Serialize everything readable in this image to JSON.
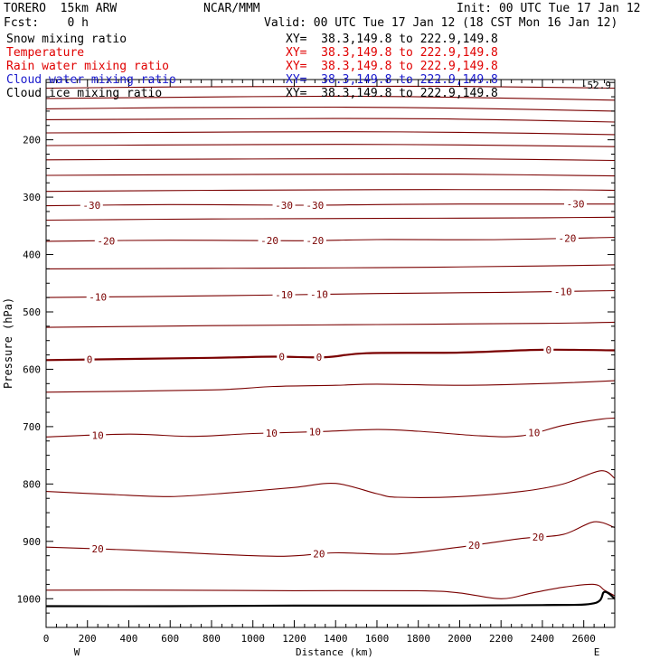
{
  "header": {
    "model": "TORERO  15km ARW",
    "org": "NCAR/MMM",
    "init": "Init: 00 UTC Tue 17 Jan 12",
    "fcst": "Fcst:    0 h",
    "valid": "Valid: 00 UTC Tue 17 Jan 12 (18 CST Mon 16 Jan 12)"
  },
  "fields": [
    {
      "label": "Snow mixing ratio",
      "xy": "XY=  38.3,149.8 to 222.9,149.8",
      "color": "#000000"
    },
    {
      "label": "Temperature",
      "xy": "XY=  38.3,149.8 to 222.9,149.8",
      "color": "#e00000"
    },
    {
      "label": "Rain water mixing ratio",
      "xy": "XY=  38.3,149.8 to 222.9,149.8",
      "color": "#e00000"
    },
    {
      "label": "Cloud water mixing ratio",
      "xy": "XY=  38.3,149.8 to 222.9,149.8",
      "color": "#1a1acc"
    },
    {
      "label": "Cloud ice mixing ratio",
      "xy": "XY=  38.3,149.8 to 222.9,149.8",
      "color": "#000000"
    }
  ],
  "top_right_label": "-52.9",
  "chart_data": {
    "type": "line",
    "xlabel": "Distance (km)",
    "ylabel": "Pressure (hPa)",
    "xlim": [
      0,
      2750
    ],
    "ylim": [
      1050,
      95
    ],
    "x_ticks": [
      0,
      200,
      400,
      600,
      800,
      1000,
      1200,
      1400,
      1600,
      1800,
      2000,
      2200,
      2400,
      2600
    ],
    "y_ticks": [
      200,
      300,
      400,
      500,
      600,
      700,
      800,
      900,
      1000
    ],
    "x_end_labels": [
      "W",
      "E"
    ],
    "contour_color": "#7a0000",
    "terrain_color": "#000000",
    "contours": [
      {
        "value": "",
        "points": [
          [
            0,
            110
          ],
          [
            600,
            108
          ],
          [
            1400,
            107
          ],
          [
            2000,
            107
          ],
          [
            2750,
            110
          ]
        ]
      },
      {
        "value": "",
        "points": [
          [
            0,
            128
          ],
          [
            600,
            126
          ],
          [
            1400,
            124
          ],
          [
            2000,
            126
          ],
          [
            2750,
            131
          ]
        ]
      },
      {
        "value": "",
        "points": [
          [
            0,
            146
          ],
          [
            600,
            144
          ],
          [
            1400,
            143
          ],
          [
            2000,
            145
          ],
          [
            2750,
            150
          ]
        ]
      },
      {
        "value": "",
        "points": [
          [
            0,
            165
          ],
          [
            600,
            164
          ],
          [
            1400,
            163
          ],
          [
            2000,
            164
          ],
          [
            2750,
            169
          ]
        ]
      },
      {
        "value": "",
        "points": [
          [
            0,
            188
          ],
          [
            600,
            187
          ],
          [
            1400,
            186
          ],
          [
            2000,
            187
          ],
          [
            2750,
            191
          ]
        ]
      },
      {
        "value": "",
        "points": [
          [
            0,
            210
          ],
          [
            600,
            209
          ],
          [
            1400,
            208
          ],
          [
            2000,
            209
          ],
          [
            2750,
            212
          ]
        ]
      },
      {
        "value": "",
        "points": [
          [
            0,
            235
          ],
          [
            600,
            234
          ],
          [
            1400,
            233
          ],
          [
            2000,
            233
          ],
          [
            2750,
            236
          ]
        ]
      },
      {
        "value": "",
        "points": [
          [
            0,
            262
          ],
          [
            600,
            261
          ],
          [
            1400,
            260
          ],
          [
            2000,
            260
          ],
          [
            2750,
            263
          ]
        ]
      },
      {
        "value": "",
        "points": [
          [
            0,
            290
          ],
          [
            800,
            288
          ],
          [
            1600,
            287
          ],
          [
            2400,
            287
          ],
          [
            2750,
            288
          ]
        ]
      },
      {
        "value": "-30",
        "points": [
          [
            0,
            315
          ],
          [
            600,
            313
          ],
          [
            1200,
            314
          ],
          [
            1600,
            313
          ],
          [
            2000,
            312
          ],
          [
            2750,
            312
          ]
        ],
        "labels": [
          220,
          1150,
          1300,
          2560
        ]
      },
      {
        "value": "",
        "points": [
          [
            0,
            340
          ],
          [
            800,
            338
          ],
          [
            1600,
            337
          ],
          [
            2400,
            336
          ],
          [
            2750,
            335
          ]
        ]
      },
      {
        "value": "-20",
        "points": [
          [
            0,
            377
          ],
          [
            600,
            375
          ],
          [
            1200,
            376
          ],
          [
            1600,
            374
          ],
          [
            2200,
            374
          ],
          [
            2750,
            370
          ]
        ],
        "labels": [
          290,
          1080,
          1300,
          2520
        ]
      },
      {
        "value": "",
        "points": [
          [
            0,
            425
          ],
          [
            800,
            424
          ],
          [
            1600,
            423
          ],
          [
            2400,
            420
          ],
          [
            2750,
            418
          ]
        ]
      },
      {
        "value": "-10",
        "points": [
          [
            0,
            475
          ],
          [
            800,
            472
          ],
          [
            1200,
            470
          ],
          [
            1600,
            468
          ],
          [
            2200,
            466
          ],
          [
            2750,
            463
          ]
        ],
        "labels": [
          250,
          1150,
          1320,
          2500
        ]
      },
      {
        "value": "",
        "points": [
          [
            0,
            527
          ],
          [
            800,
            524
          ],
          [
            1600,
            522
          ],
          [
            2400,
            520
          ],
          [
            2750,
            518
          ]
        ]
      },
      {
        "value": "0",
        "points": [
          [
            0,
            584
          ],
          [
            800,
            580
          ],
          [
            1100,
            578
          ],
          [
            1350,
            579
          ],
          [
            1550,
            572
          ],
          [
            2000,
            571
          ],
          [
            2400,
            566
          ],
          [
            2750,
            567
          ]
        ],
        "labels": [
          210,
          1140,
          1320,
          2430
        ],
        "bold": true
      },
      {
        "value": "",
        "points": [
          [
            0,
            640
          ],
          [
            800,
            636
          ],
          [
            1100,
            630
          ],
          [
            1400,
            628
          ],
          [
            1600,
            626
          ],
          [
            2000,
            628
          ],
          [
            2400,
            625
          ],
          [
            2750,
            620
          ]
        ]
      },
      {
        "value": "10",
        "points": [
          [
            0,
            718
          ],
          [
            400,
            713
          ],
          [
            700,
            717
          ],
          [
            1000,
            712
          ],
          [
            1300,
            709
          ],
          [
            1600,
            705
          ],
          [
            1800,
            708
          ],
          [
            2100,
            716
          ],
          [
            2300,
            716
          ],
          [
            2500,
            698
          ],
          [
            2680,
            687
          ],
          [
            2750,
            685
          ]
        ],
        "labels": [
          250,
          1090,
          1300,
          2360
        ]
      },
      {
        "value": "",
        "points": [
          [
            0,
            813
          ],
          [
            300,
            818
          ],
          [
            600,
            822
          ],
          [
            900,
            815
          ],
          [
            1200,
            806
          ],
          [
            1400,
            799
          ],
          [
            1600,
            817
          ],
          [
            1700,
            823
          ],
          [
            2000,
            822
          ],
          [
            2300,
            813
          ],
          [
            2500,
            800
          ],
          [
            2680,
            777
          ],
          [
            2750,
            790
          ]
        ]
      },
      {
        "value": "20",
        "points": [
          [
            0,
            910
          ],
          [
            400,
            915
          ],
          [
            800,
            922
          ],
          [
            1150,
            926
          ],
          [
            1400,
            920
          ],
          [
            1700,
            922
          ],
          [
            2000,
            910
          ],
          [
            2300,
            895
          ],
          [
            2500,
            888
          ],
          [
            2650,
            866
          ],
          [
            2750,
            876
          ]
        ],
        "labels": [
          250,
          1320,
          2070,
          2380
        ]
      },
      {
        "value": "",
        "points": [
          [
            0,
            985
          ],
          [
            600,
            985
          ],
          [
            1200,
            986
          ],
          [
            1800,
            986
          ],
          [
            2000,
            990
          ],
          [
            2200,
            1000
          ],
          [
            2350,
            990
          ],
          [
            2500,
            980
          ],
          [
            2650,
            975
          ],
          [
            2700,
            985
          ],
          [
            2750,
            995
          ]
        ]
      }
    ],
    "terrain": [
      [
        0,
        1013
      ],
      [
        600,
        1013
      ],
      [
        1200,
        1012
      ],
      [
        1800,
        1012
      ],
      [
        2400,
        1011
      ],
      [
        2650,
        1008
      ],
      [
        2700,
        988
      ],
      [
        2750,
        1000
      ]
    ]
  }
}
